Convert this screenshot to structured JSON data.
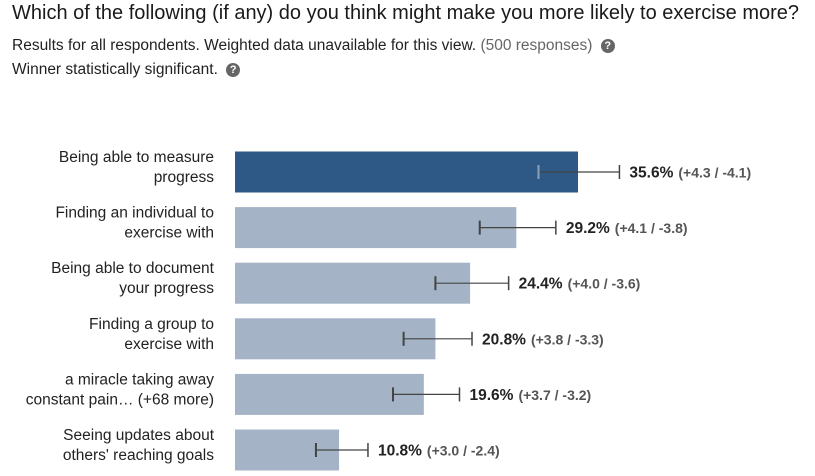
{
  "header": {
    "title": "Which of the following (if any) do you think might make you more likely to exercise more?",
    "results_text": "Results for all respondents. Weighted data unavailable for this view.",
    "responses_text": "(500 responses)",
    "significance_text": "Winner statistically significant.",
    "help_icon": "question-circle-icon"
  },
  "chart_data": {
    "type": "bar",
    "orientation": "horizontal",
    "categories": [
      [
        "Being able to measure",
        "progress"
      ],
      [
        "Finding an individual to",
        "exercise with"
      ],
      [
        "Being able to document",
        "your progress"
      ],
      [
        "Finding a group to",
        "exercise with"
      ],
      [
        "a miracle taking away",
        "constant pain… (+68 more)"
      ],
      [
        "Seeing updates about",
        "others' reaching goals"
      ]
    ],
    "values": [
      35.6,
      29.2,
      24.4,
      20.8,
      19.6,
      10.8
    ],
    "value_labels": [
      "35.6%",
      "29.2%",
      "24.4%",
      "20.8%",
      "19.6%",
      "10.8%"
    ],
    "ci_labels": [
      "(+4.3 / -4.1)",
      "(+4.1 / -3.8)",
      "(+4.0 / -3.6)",
      "(+3.8 / -3.3)",
      "(+3.7 / -3.2)",
      "(+3.0 / -2.4)"
    ],
    "ci_plus": [
      4.3,
      4.1,
      4.0,
      3.8,
      3.7,
      3.0
    ],
    "ci_minus": [
      4.1,
      3.8,
      3.6,
      3.3,
      3.2,
      2.4
    ],
    "winner_index": 0,
    "colors": {
      "winner": "#2e5987",
      "other": "#a4b3c5",
      "error_bar": "#444444"
    },
    "grid": false,
    "legend": "none"
  }
}
